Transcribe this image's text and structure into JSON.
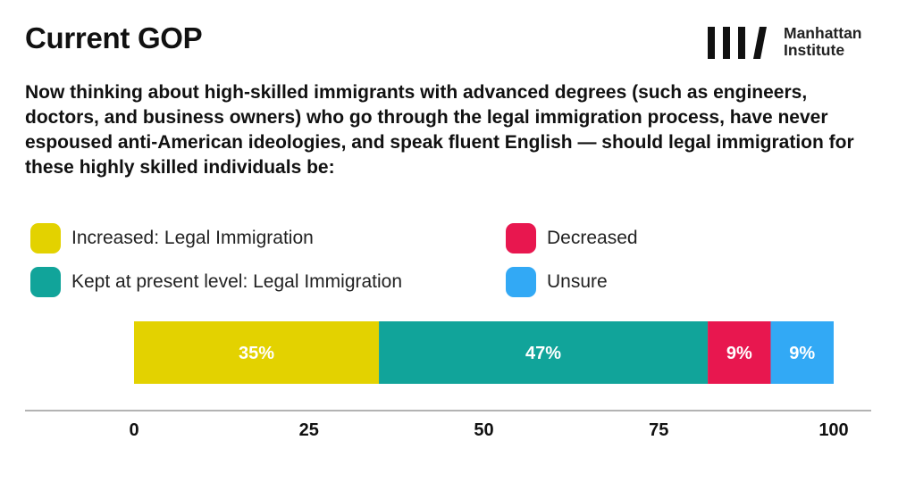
{
  "header": {
    "title": "Current GOP",
    "logo_icon": "manhattan-institute-logo-icon",
    "logo_line1": "Manhattan",
    "logo_line2": "Institute"
  },
  "question": "Now thinking about high-skilled immigrants with advanced degrees (such as engineers, doctors, and business owners) who go through the legal immigration process, have never espoused anti-American ideologies, and speak fluent English — should legal immigration for these highly skilled individuals be:",
  "legend": [
    {
      "label": "Increased: Legal Immigration",
      "color": "#E3D200"
    },
    {
      "label": "Kept at present level: Legal Immigration",
      "color": "#11A49A"
    },
    {
      "label": "Decreased",
      "color": "#E8174F"
    },
    {
      "label": "Unsure",
      "color": "#32A9F5"
    }
  ],
  "chart_data": {
    "type": "bar",
    "orientation": "horizontal",
    "stacked": true,
    "xlim": [
      0,
      100
    ],
    "xticks": [
      0,
      25,
      50,
      75,
      100
    ],
    "series": [
      {
        "name": "Increased: Legal Immigration",
        "value": 35,
        "label": "35%",
        "color": "#E3D200"
      },
      {
        "name": "Kept at present level: Legal Immigration",
        "value": 47,
        "label": "47%",
        "color": "#11A49A"
      },
      {
        "name": "Decreased",
        "value": 9,
        "label": "9%",
        "color": "#E8174F"
      },
      {
        "name": "Unsure",
        "value": 9,
        "label": "9%",
        "color": "#32A9F5"
      }
    ],
    "grid": false
  }
}
